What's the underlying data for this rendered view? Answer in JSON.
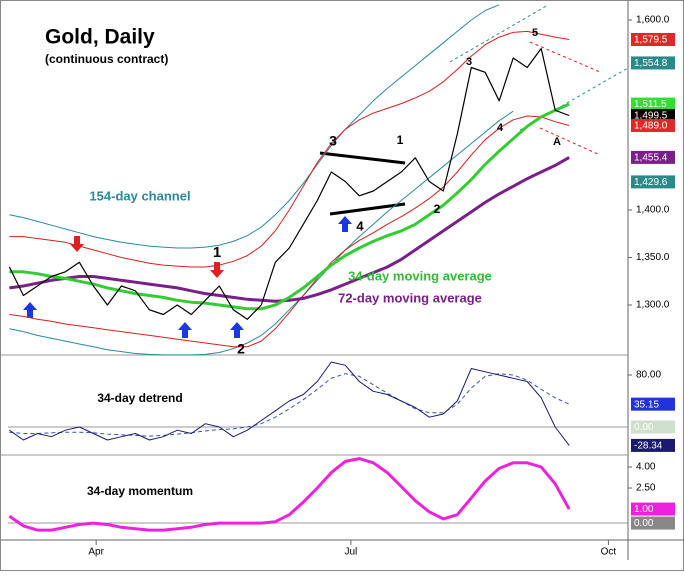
{
  "chart_data": [
    {
      "type": "line",
      "title": "Gold, Daily",
      "subtitle": "(continuous contract)",
      "x": [
        60,
        65,
        70,
        75,
        80,
        85,
        90,
        95,
        100,
        105,
        110,
        115,
        120,
        125,
        130,
        135,
        140,
        145,
        150,
        155,
        160,
        165,
        170,
        175,
        180,
        185,
        190,
        195,
        200,
        205,
        210,
        215,
        220,
        225,
        230,
        235,
        240,
        245,
        250,
        255,
        260
      ],
      "xlim": [
        59.5,
        281
      ],
      "ylim": [
        1247.4,
        1615.8
      ],
      "yticks": [
        {
          "value": 1600,
          "label": "1,600.0"
        },
        {
          "value": 1400,
          "label": "1,400.0"
        },
        {
          "value": 1350,
          "label": "1,350.0"
        },
        {
          "value": 1300,
          "label": "1,300.0"
        }
      ],
      "series": [
        {
          "color": "#2a8a9a",
          "values": [
            1395,
            1392,
            1388,
            1384,
            1380,
            1376,
            1372,
            1369,
            1366,
            1364,
            1362,
            1361,
            1360,
            1360,
            1361,
            1363,
            1367,
            1373,
            1382,
            1395,
            1410,
            1428,
            1448,
            1468,
            1485,
            1500,
            1515,
            1528,
            1540,
            1552,
            1564,
            1576,
            1588,
            1600,
            1610,
            1616,
            null,
            null,
            null,
            null,
            null
          ]
        },
        {
          "color": "#2a8a9a",
          "values": [
            1275,
            1272,
            1268,
            1265,
            1262,
            1259,
            1256,
            1253,
            1251,
            1249,
            1248,
            1247.5,
            1247.5,
            1247.5,
            1248,
            1250,
            1254,
            1260,
            1268,
            1280,
            1295,
            1310,
            1326,
            1342,
            1358,
            1372,
            1385,
            1398,
            1410,
            1422,
            1434,
            1446,
            1458,
            1470,
            1482,
            1494,
            1504,
            null,
            null,
            null,
            null
          ]
        },
        {
          "color": "#d42020",
          "values": [
            1372,
            1372,
            1370,
            1368,
            1366,
            1362,
            1358,
            1354,
            1350,
            1347,
            1344,
            1342,
            1341,
            1340,
            1340,
            1342,
            1346,
            1352,
            1362,
            1378,
            1400,
            1425,
            1450,
            1470,
            1485,
            1495,
            1502,
            1507,
            1512,
            1518,
            1525,
            1535,
            1548,
            1562,
            1574,
            1582,
            1587,
            1588,
            1585,
            1582,
            1579.5
          ]
        },
        {
          "color": "#d42020",
          "values": [
            1290,
            1288,
            1285,
            1283,
            1280,
            1278,
            1276,
            1274,
            1272,
            1270,
            1268,
            1266,
            1264,
            1262,
            1260,
            1258,
            1256,
            1256,
            1262,
            1275,
            1292,
            1310,
            1328,
            1345,
            1358,
            1368,
            1376,
            1385,
            1393,
            1402,
            1412,
            1424,
            1440,
            1458,
            1474,
            1486,
            1495,
            1499,
            1498,
            1493,
            1489
          ]
        },
        {
          "color": "#7a1f8a",
          "width": 3,
          "values": [
            1318,
            1320,
            1323,
            1326,
            1328,
            1330,
            1330,
            1328,
            1326,
            1324,
            1322,
            1320,
            1318,
            1315,
            1312,
            1310,
            1308,
            1306,
            1305,
            1304,
            1305,
            1307,
            1311,
            1316,
            1322,
            1328,
            1334,
            1340,
            1348,
            1358,
            1368,
            1378,
            1388,
            1398,
            1408,
            1417,
            1425,
            1433,
            1440,
            1447,
            1455.4
          ]
        },
        {
          "color": "#33cc33",
          "width": 3,
          "values": [
            1335,
            1335,
            1333,
            1330,
            1328,
            1325,
            1322,
            1318,
            1315,
            1312,
            1310,
            1308,
            1305,
            1303,
            1302,
            1300,
            1298,
            1296,
            1296,
            1300,
            1308,
            1318,
            1330,
            1342,
            1352,
            1360,
            1367,
            1373,
            1378,
            1385,
            1395,
            1405,
            1418,
            1432,
            1448,
            1462,
            1475,
            1488,
            1498,
            1505,
            1511.5
          ]
        },
        {
          "color": "#000000",
          "width": 1.2,
          "values": [
            1340,
            1310,
            1320,
            1330,
            1335,
            1345,
            1320,
            1300,
            1320,
            1315,
            1295,
            1290,
            1300,
            1290,
            1305,
            1320,
            1295,
            1285,
            1300,
            1345,
            1360,
            1385,
            1410,
            1440,
            1430,
            1415,
            1420,
            1430,
            1440,
            1455,
            1430,
            1420,
            1480,
            1550,
            1545,
            1515,
            1560,
            1550,
            1570,
            1505,
            1499.5
          ]
        }
      ],
      "axis_markers": [
        {
          "value": 1579.5,
          "label": "1,579.5",
          "color": "#e02828"
        },
        {
          "value": 1554.8,
          "label": "1,554.8",
          "color": "#2a8a8a"
        },
        {
          "value": 1511.5,
          "label": "1,511.5",
          "color": "#33dd33"
        },
        {
          "value": 1499.5,
          "label": "1,499.5",
          "color": "#000000"
        },
        {
          "value": 1489,
          "label": "1,489.0",
          "color": "#e02828"
        },
        {
          "value": 1455.4,
          "label": "1,455.4",
          "color": "#7a1f8a"
        },
        {
          "value": 1429.6,
          "label": "1,429.6",
          "color": "#2a8a8a"
        }
      ],
      "annotations": [
        "154-day channel",
        "34-day moving average",
        "72-day moving average",
        "3",
        "1",
        "4",
        "2",
        "1",
        "2",
        "3",
        "5",
        "4",
        "A"
      ]
    },
    {
      "type": "line",
      "x": [
        60,
        65,
        70,
        75,
        80,
        85,
        90,
        95,
        100,
        105,
        110,
        115,
        120,
        125,
        130,
        135,
        140,
        145,
        150,
        155,
        160,
        165,
        170,
        175,
        180,
        185,
        190,
        195,
        200,
        205,
        210,
        215,
        220,
        225,
        230,
        235,
        240,
        245,
        250,
        255,
        260
      ],
      "xlim": [
        59.5,
        281
      ],
      "ylim": [
        -43.1,
        110.8
      ],
      "yticks": [
        {
          "value": 80,
          "label": "80.00"
        }
      ],
      "series": [
        {
          "color": "#3355aa",
          "dash": true,
          "values": [
            -8,
            -10,
            -10,
            -9,
            -8,
            -8,
            -9,
            -11,
            -12,
            -13,
            -14,
            -13,
            -11,
            -9,
            -6,
            -4,
            -3,
            0,
            5,
            15,
            28,
            42,
            58,
            75,
            82,
            78,
            65,
            52,
            40,
            28,
            22,
            22,
            35,
            60,
            78,
            82,
            80,
            72,
            58,
            45,
            35.15
          ]
        },
        {
          "color": "#1a1a6e",
          "values": [
            -5,
            -20,
            -10,
            -15,
            -5,
            0,
            -10,
            -20,
            -15,
            -10,
            -20,
            -15,
            -5,
            -10,
            5,
            0,
            -15,
            -5,
            10,
            25,
            40,
            50,
            70,
            100,
            95,
            70,
            55,
            50,
            40,
            30,
            15,
            20,
            40,
            90,
            85,
            80,
            75,
            70,
            45,
            0,
            -28.34
          ]
        }
      ],
      "axis_markers": [
        {
          "value": 35.15,
          "label": "35.15",
          "color": "#2233dd"
        },
        {
          "value": 0,
          "label": "0.00",
          "color": "#cfe0cf",
          "ref": true
        },
        {
          "value": -28.34,
          "label": "-28.34",
          "color": "#1a1a6e"
        }
      ],
      "annotations": [
        "34-day detrend"
      ]
    },
    {
      "type": "line",
      "x": [
        60,
        65,
        70,
        75,
        80,
        85,
        90,
        95,
        100,
        105,
        110,
        115,
        120,
        125,
        130,
        135,
        140,
        145,
        150,
        155,
        160,
        165,
        170,
        175,
        180,
        185,
        190,
        195,
        200,
        205,
        210,
        215,
        220,
        225,
        230,
        235,
        240,
        245,
        250,
        255,
        260
      ],
      "xlim": [
        59.5,
        281
      ],
      "ylim": [
        -1.21,
        4.86
      ],
      "yticks": [
        {
          "value": 4,
          "label": "4.00"
        },
        {
          "value": 2.5,
          "label": "2.50"
        }
      ],
      "xticks": [
        {
          "value": 91,
          "label": "Apr"
        },
        {
          "value": 182,
          "label": "Jul"
        },
        {
          "value": 274,
          "label": "Oct"
        }
      ],
      "series": [
        {
          "color": "#ee22dd",
          "width": 3,
          "values": [
            0.5,
            -0.2,
            -0.5,
            -0.5,
            -0.3,
            -0.1,
            0,
            -0.1,
            -0.3,
            -0.4,
            -0.5,
            -0.5,
            -0.4,
            -0.3,
            -0.1,
            0,
            0,
            0,
            0,
            0.1,
            0.6,
            1.5,
            2.5,
            3.6,
            4.4,
            4.6,
            4.3,
            3.6,
            2.6,
            1.6,
            0.8,
            0.3,
            0.6,
            1.8,
            3,
            3.9,
            4.3,
            4.3,
            4,
            2.8,
            1
          ]
        }
      ],
      "axis_markers": [
        {
          "value": 1,
          "label": "1.00",
          "color": "#ee22dd"
        },
        {
          "value": 0,
          "label": "0.00",
          "color": "#888888",
          "ref": true
        }
      ],
      "annotations": [
        "34-day momentum"
      ]
    }
  ]
}
